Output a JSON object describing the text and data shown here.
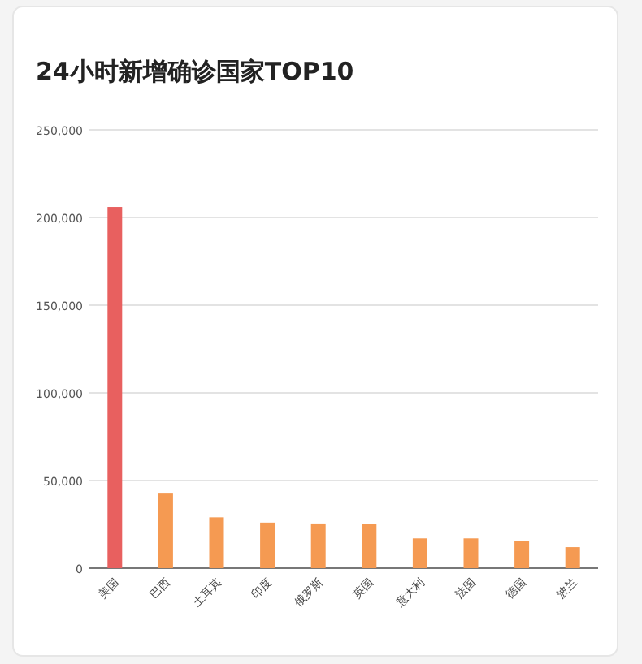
{
  "chart_data": {
    "type": "bar",
    "title": "24小时新增确诊国家TOP10",
    "categories": [
      "美国",
      "巴西",
      "土耳其",
      "印度",
      "俄罗斯",
      "英国",
      "意大利",
      "法国",
      "德国",
      "波兰"
    ],
    "values": [
      206000,
      43000,
      29000,
      26000,
      25500,
      25000,
      17000,
      17000,
      15500,
      12000
    ],
    "colors": [
      "#e8605f",
      "#f59a52",
      "#f59a52",
      "#f59a52",
      "#f59a52",
      "#f59a52",
      "#f59a52",
      "#f59a52",
      "#f59a52",
      "#f59a52"
    ],
    "ylim": [
      0,
      250000
    ],
    "yticks": [
      {
        "value": 0,
        "label": "0"
      },
      {
        "value": 50000,
        "label": "50,000"
      },
      {
        "value": 100000,
        "label": "100,000"
      },
      {
        "value": 150000,
        "label": "150,000"
      },
      {
        "value": 200000,
        "label": "200,000"
      },
      {
        "value": 250000,
        "label": "250,000"
      }
    ],
    "grid": "y"
  }
}
